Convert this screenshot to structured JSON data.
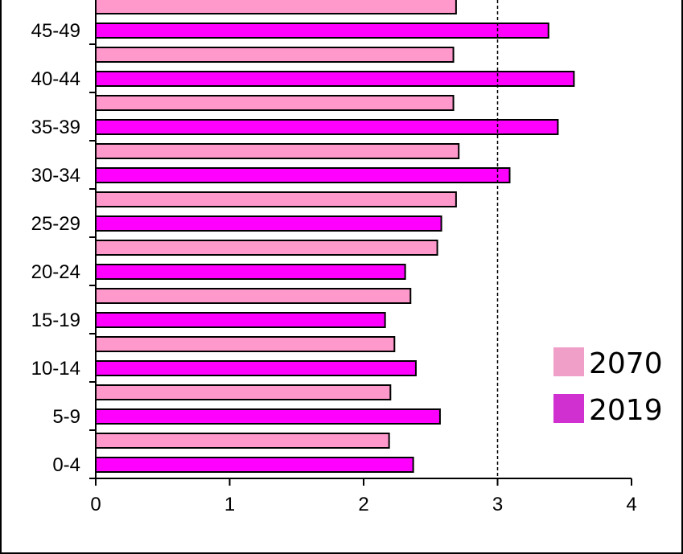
{
  "chart_data": {
    "type": "bar",
    "orientation": "horizontal",
    "categories": [
      "0-4",
      "5-9",
      "10-14",
      "15-19",
      "20-24",
      "25-29",
      "30-34",
      "35-39",
      "40-44",
      "45-49"
    ],
    "series": [
      {
        "name": "2019",
        "color": "#ff00ff",
        "values": [
          2.37,
          2.57,
          2.39,
          2.16,
          2.31,
          2.58,
          3.09,
          3.45,
          3.57,
          3.38
        ]
      },
      {
        "name": "2070",
        "color": "#ff99cc",
        "values": [
          2.19,
          2.2,
          2.23,
          2.35,
          2.55,
          2.69,
          2.71,
          2.67,
          2.67,
          2.69
        ]
      }
    ],
    "partial_top_bar": {
      "series": "2070",
      "value": 2.78
    },
    "xlim": [
      0,
      4
    ],
    "xticks": [
      "0",
      "1",
      "2",
      "3",
      "4"
    ],
    "reference_line": {
      "x": 3,
      "style": "dashed"
    },
    "grid": false,
    "legend": {
      "position": "bottom-right",
      "entries": [
        {
          "label": "2070",
          "color": "#f0a0c8"
        },
        {
          "label": "2019",
          "color": "#d030d0"
        }
      ]
    }
  }
}
